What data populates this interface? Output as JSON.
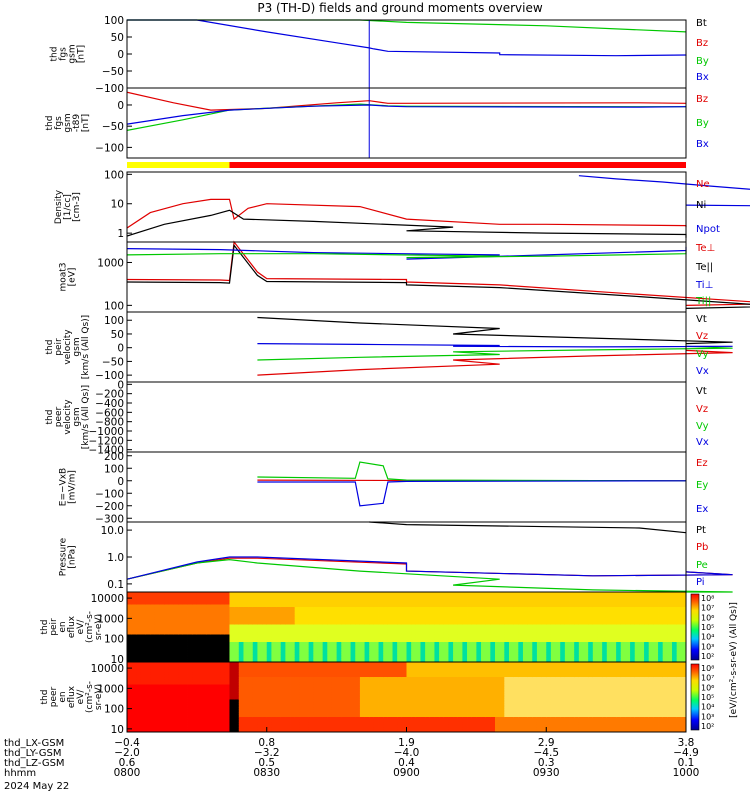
{
  "title": "P3 (TH-D) fields and ground moments overview",
  "chart_data": [
    {
      "type": "line",
      "ylabel": [
        "thd",
        "fgs",
        "gsm",
        "[nT]"
      ],
      "ylim": [
        -100,
        100
      ],
      "yticks": [
        "100",
        "50",
        "0",
        "−50",
        "−100"
      ],
      "series": [
        {
          "name": "Bt",
          "color": "#000000",
          "x": [],
          "y": []
        },
        {
          "name": "Bz",
          "color": "#e00000",
          "x": [],
          "y": []
        },
        {
          "name": "By",
          "color": "#00c800",
          "x": [
            800,
            820,
            850,
            900,
            930,
            1000
          ],
          "y": [
            100,
            100,
            100,
            93,
            83,
            65
          ]
        },
        {
          "name": "Bx",
          "color": "#0000e0",
          "x": [
            800,
            815,
            830,
            845,
            852,
            853,
            856,
            880,
            920,
            945,
            960,
            1000
          ],
          "y": [
            100,
            100,
            65,
            33,
            18,
            15,
            8,
            3,
            -2,
            -5,
            -3,
            -2
          ]
        }
      ]
    },
    {
      "type": "line",
      "ylabel": [
        "thd",
        "fgs",
        "gsm",
        "-t89",
        "[nT]"
      ],
      "ylim": [
        -125,
        40
      ],
      "yticks": [
        "0",
        "−50",
        "−100"
      ],
      "series": [
        {
          "name": "Bz",
          "color": "#e00000",
          "x": [
            800,
            810,
            818,
            830,
            845,
            852,
            856,
            900,
            950,
            1000
          ],
          "y": [
            30,
            5,
            -12,
            -8,
            5,
            10,
            4,
            4,
            5,
            4
          ]
        },
        {
          "name": "By",
          "color": "#00c800",
          "x": [
            800,
            812,
            822,
            835,
            850,
            856,
            900,
            950,
            1000
          ],
          "y": [
            -60,
            -35,
            -12,
            -5,
            2,
            -2,
            -3,
            -4,
            -4
          ]
        },
        {
          "name": "Bx",
          "color": "#0000e0",
          "x": [
            800,
            812,
            822,
            840,
            852,
            856,
            900,
            950,
            1000
          ],
          "y": [
            -45,
            -25,
            -12,
            -3,
            0,
            -3,
            -4,
            -5,
            -4
          ]
        }
      ]
    },
    {
      "type": "line",
      "ylabel": [
        "Density",
        "[1/cc]",
        "[cm-3]"
      ],
      "log": true,
      "ylim": [
        0.5,
        120
      ],
      "yticks": [
        "100",
        "10",
        "1"
      ],
      "series": [
        {
          "name": "Ne",
          "color": "#e00000",
          "x": [
            800,
            805,
            812,
            818,
            822,
            823,
            826,
            830,
            850,
            900,
            920,
            930,
            960,
            1000
          ],
          "y": [
            1.5,
            5,
            10,
            14,
            14,
            3,
            7,
            10,
            8,
            3,
            2,
            2,
            1.8,
            1.6
          ]
        },
        {
          "name": "Ni",
          "color": "#000000",
          "x": [
            800,
            808,
            818,
            822,
            825,
            840,
            870,
            900,
            930,
            960,
            1000
          ],
          "y": [
            0.8,
            2,
            4,
            6,
            3,
            2.5,
            1.6,
            1.2,
            1,
            0.9,
            0.7
          ]
        },
        {
          "name": "Npot",
          "color": "#0000e0",
          "x": [
            937,
            945,
            955,
            965,
            975,
            985,
            990,
            995,
            1000
          ],
          "y": [
            90,
            70,
            55,
            40,
            30,
            20,
            12,
            8,
            9
          ]
        }
      ]
    },
    {
      "type": "line",
      "ylabel": [
        "moat3",
        "[eV]"
      ],
      "log": true,
      "ylim": [
        70,
        3000
      ],
      "yticks": [
        "1000",
        "100"
      ],
      "series": [
        {
          "name": "Te⊥",
          "color": "#e00000",
          "x": [
            800,
            820,
            822,
            823,
            828,
            830,
            860,
            900,
            920,
            950,
            980,
            1000
          ],
          "y": [
            400,
            390,
            380,
            3000,
            600,
            420,
            400,
            350,
            300,
            180,
            110,
            100
          ]
        },
        {
          "name": "Te||",
          "color": "#000000",
          "x": [
            800,
            820,
            822,
            823,
            828,
            830,
            860,
            900,
            920,
            950,
            980,
            1000
          ],
          "y": [
            350,
            340,
            330,
            2500,
            500,
            360,
            340,
            300,
            260,
            160,
            95,
            85
          ]
        },
        {
          "name": "Ti⊥",
          "color": "#0000e0",
          "x": [
            800,
            820,
            840,
            880,
            900,
            930,
            960,
            1000
          ],
          "y": [
            2100,
            2000,
            1700,
            1500,
            1200,
            1500,
            1900,
            2300
          ]
        },
        {
          "name": "Ti||",
          "color": "#00c800",
          "x": [
            800,
            820,
            840,
            880,
            900,
            930,
            960,
            1000
          ],
          "y": [
            1500,
            1600,
            1600,
            1400,
            1300,
            1400,
            1600,
            1900
          ]
        }
      ]
    },
    {
      "type": "line",
      "ylabel": [
        "thd",
        "peir",
        "velocity",
        "gsm",
        "[km/s (All Qs)]"
      ],
      "ylim": [
        -125,
        130
      ],
      "yticks": [
        "100",
        "50",
        "0",
        "−50",
        "−100"
      ],
      "series": [
        {
          "name": "Vt",
          "color": "#000000",
          "x": [
            828,
            850,
            880,
            910,
            940,
            970,
            1000
          ],
          "y": [
            110,
            90,
            70,
            50,
            35,
            20,
            15
          ]
        },
        {
          "name": "Vz",
          "color": "#e00000",
          "x": [
            828,
            850,
            880,
            910,
            940,
            970,
            1000
          ],
          "y": [
            -100,
            -80,
            -60,
            -45,
            -30,
            -18,
            -10
          ]
        },
        {
          "name": "Vy",
          "color": "#00c800",
          "x": [
            828,
            850,
            880,
            910,
            940,
            970,
            1000
          ],
          "y": [
            -45,
            -35,
            -25,
            -15,
            -8,
            -2,
            5
          ]
        },
        {
          "name": "Vx",
          "color": "#0000e0",
          "x": [
            828,
            850,
            880,
            910,
            940,
            970,
            1000
          ],
          "y": [
            15,
            12,
            8,
            5,
            3,
            5,
            5
          ]
        }
      ]
    },
    {
      "type": "line",
      "ylabel": [
        "thd",
        "peer",
        "velocity",
        "gsm",
        "[km/s (All Qs)]"
      ],
      "ylim": [
        -1450,
        50
      ],
      "yticks": [
        "0",
        "−200",
        "−400",
        "−600",
        "−800",
        "−1000",
        "−1200",
        "−1400"
      ],
      "series": [
        {
          "name": "Vt",
          "color": "#000000",
          "x": [],
          "y": []
        },
        {
          "name": "Vz",
          "color": "#e00000",
          "x": [],
          "y": []
        },
        {
          "name": "Vy",
          "color": "#00c800",
          "x": [],
          "y": []
        },
        {
          "name": "Vx",
          "color": "#0000e0",
          "x": [],
          "y": []
        }
      ]
    },
    {
      "type": "line",
      "ylabel": [
        "E=−VxB",
        "[mV/m]"
      ],
      "ylim": [
        -330,
        230
      ],
      "yticks": [
        "200",
        "100",
        "0",
        "−100",
        "−200",
        "−300"
      ],
      "series": [
        {
          "name": "Ez",
          "color": "#e00000",
          "x": [
            828,
            900,
            1000
          ],
          "y": [
            5,
            2,
            0
          ]
        },
        {
          "name": "Ey",
          "color": "#00c800",
          "x": [
            828,
            849,
            850,
            855,
            856,
            900,
            1000
          ],
          "y": [
            30,
            20,
            150,
            120,
            15,
            5,
            0
          ]
        },
        {
          "name": "Ex",
          "color": "#0000e0",
          "x": [
            828,
            849,
            850,
            855,
            856,
            900,
            1000
          ],
          "y": [
            -10,
            -10,
            -200,
            -180,
            -10,
            -5,
            0
          ]
        }
      ]
    },
    {
      "type": "line",
      "ylabel": [
        "Pressure",
        "[nPa]"
      ],
      "log": true,
      "ylim": [
        0.05,
        20
      ],
      "yticks": [
        "10.0",
        "1.0",
        "0.1"
      ],
      "series": [
        {
          "name": "Pt",
          "color": "#000000",
          "x": [
            852,
            900,
            950,
            1000
          ],
          "y": [
            20,
            16,
            12,
            8
          ]
        },
        {
          "name": "Pb",
          "color": "#e00000",
          "x": [
            800,
            815,
            822,
            828,
            860,
            900,
            940,
            970,
            1000
          ],
          "y": [
            0.15,
            0.6,
            0.9,
            0.9,
            0.55,
            0.3,
            0.2,
            0.22,
            0.28
          ]
        },
        {
          "name": "Pe",
          "color": "#00c800",
          "x": [
            800,
            815,
            822,
            828,
            850,
            880,
            910,
            940,
            970,
            1000
          ],
          "y": [
            0.15,
            0.6,
            0.8,
            0.6,
            0.3,
            0.15,
            0.09,
            0.06,
            0.05,
            0.05
          ]
        },
        {
          "name": "Pi",
          "color": "#0000e0",
          "x": [
            800,
            815,
            822,
            828,
            860,
            900,
            940,
            970,
            1000
          ],
          "y": [
            0.15,
            0.65,
            1.0,
            1.0,
            0.6,
            0.3,
            0.2,
            0.22,
            0.28
          ]
        }
      ]
    },
    {
      "type": "heatmap",
      "ylabel": [
        "thd",
        "peir",
        "en",
        "eflux",
        "eV/",
        "(cm²-s-",
        "sr-eV)"
      ],
      "log": true,
      "ylim": [
        7,
        20000
      ],
      "yticks": [
        "10000",
        "1000",
        "100",
        "10"
      ]
    },
    {
      "type": "heatmap",
      "ylabel": [
        "thd",
        "peer",
        "en",
        "eflux",
        "eV/",
        "(cm²-s-",
        "sr-eV)"
      ],
      "log": true,
      "ylim": [
        7,
        20000
      ],
      "yticks": [
        "10000",
        "1000",
        "100",
        "10"
      ],
      "colorbar_label": "[eV/(cm²-s-sr-eV) (All Qs)]",
      "colorbar_ticks": [
        "10⁸",
        "10⁷",
        "10⁶",
        "10⁵",
        "10⁴",
        "10³",
        "10²"
      ]
    }
  ],
  "x_axis": {
    "xlim": [
      800,
      1000
    ],
    "ticks": [
      800,
      830,
      900,
      930,
      1000
    ],
    "rows": [
      {
        "label": "thd_LX-GSM",
        "values": [
          "−0.4",
          "0.8",
          "1.9",
          "2.9",
          "3.8"
        ]
      },
      {
        "label": "thd_LY-GSM",
        "values": [
          "−2.0",
          "−3.2",
          "−4.0",
          "−4.5",
          "−4.9"
        ]
      },
      {
        "label": "thd_LZ-GSM",
        "values": [
          "0.6",
          "0.5",
          "0.4",
          "0.3",
          "0.1"
        ]
      },
      {
        "label": "hhmm",
        "values": [
          "0800",
          "0830",
          "0900",
          "0930",
          "1000"
        ]
      }
    ],
    "date": "2024 May 22"
  }
}
